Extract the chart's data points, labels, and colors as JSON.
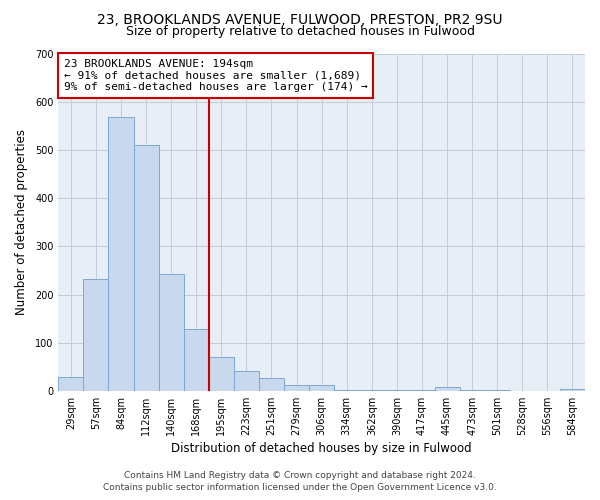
{
  "title": "23, BROOKLANDS AVENUE, FULWOOD, PRESTON, PR2 9SU",
  "subtitle": "Size of property relative to detached houses in Fulwood",
  "xlabel": "Distribution of detached houses by size in Fulwood",
  "ylabel": "Number of detached properties",
  "bar_labels": [
    "29sqm",
    "57sqm",
    "84sqm",
    "112sqm",
    "140sqm",
    "168sqm",
    "195sqm",
    "223sqm",
    "251sqm",
    "279sqm",
    "306sqm",
    "334sqm",
    "362sqm",
    "390sqm",
    "417sqm",
    "445sqm",
    "473sqm",
    "501sqm",
    "528sqm",
    "556sqm",
    "584sqm"
  ],
  "bar_values": [
    28,
    232,
    570,
    510,
    242,
    128,
    70,
    42,
    26,
    12,
    12,
    2,
    2,
    2,
    2,
    8,
    2,
    2,
    0,
    0,
    4
  ],
  "bar_color": "#c8d8ed",
  "bar_edge_color": "#7ca8d5",
  "vline_x_index": 6,
  "vline_color": "#cc0000",
  "annotation_title": "23 BROOKLANDS AVENUE: 194sqm",
  "annotation_line1": "← 91% of detached houses are smaller (1,689)",
  "annotation_line2": "9% of semi-detached houses are larger (174) →",
  "annotation_box_facecolor": "#ffffff",
  "annotation_box_edgecolor": "#cc0000",
  "plot_bg_color": "#e8eef5",
  "fig_bg_color": "#ffffff",
  "grid_color": "#c0ccd8",
  "ylim": [
    0,
    700
  ],
  "yticks": [
    0,
    100,
    200,
    300,
    400,
    500,
    600,
    700
  ],
  "title_fontsize": 10,
  "subtitle_fontsize": 9,
  "tick_fontsize": 7,
  "axis_label_fontsize": 8.5,
  "annotation_fontsize": 8,
  "footer_fontsize": 6.5,
  "footer_line1": "Contains HM Land Registry data © Crown copyright and database right 2024.",
  "footer_line2": "Contains public sector information licensed under the Open Government Licence v3.0."
}
